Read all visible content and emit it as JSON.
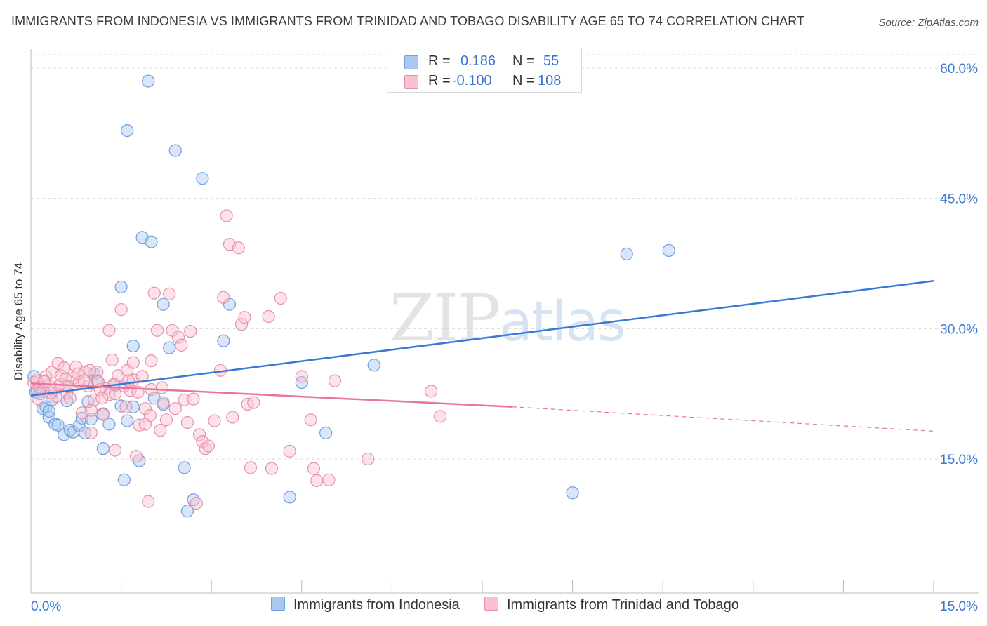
{
  "title": "IMMIGRANTS FROM INDONESIA VS IMMIGRANTS FROM TRINIDAD AND TOBAGO DISABILITY AGE 65 TO 74 CORRELATION CHART",
  "source": "Source: ZipAtlas.com",
  "watermark": {
    "zip": "ZIP",
    "atlas": "atlas"
  },
  "legend": {
    "rows": [
      {
        "r_label": "R =",
        "r_value": "0.186",
        "n_label": "N =",
        "n_value": "55",
        "color": "#a8c8f0",
        "border": "#6f9fe0"
      },
      {
        "r_label": "R =",
        "r_value": "-0.100",
        "n_label": "N =",
        "n_value": "108",
        "color": "#f8c0d0",
        "border": "#e890aa"
      }
    ]
  },
  "bottom_legend": [
    {
      "label": "Immigrants from Indonesia",
      "color": "#a8c8f0",
      "border": "#6f9fe0"
    },
    {
      "label": "Immigrants from Trinidad and Tobago",
      "color": "#f8c0d0",
      "border": "#e890aa"
    }
  ],
  "chart_data": {
    "type": "scatter",
    "title": "IMMIGRANTS FROM INDONESIA VS IMMIGRANTS FROM TRINIDAD AND TOBAGO DISABILITY AGE 65 TO 74 CORRELATION CHART",
    "xlabel": "",
    "ylabel": "Disability Age 65 to 74",
    "xlim": [
      0,
      15
    ],
    "ylim": [
      0,
      63
    ],
    "x_tick_labels": [
      "0.0%",
      "15.0%"
    ],
    "y_ticks": [
      15,
      30,
      45,
      60
    ],
    "y_tick_labels": [
      "15.0%",
      "30.0%",
      "45.0%",
      "60.0%"
    ],
    "grid": true,
    "colors": {
      "indonesia": "#3a78d8",
      "trinidad": "#e8749a"
    },
    "series": [
      {
        "name": "Immigrants from Indonesia",
        "color": "#6f9fe0",
        "trend": {
          "x": [
            0,
            15
          ],
          "y": [
            22.3,
            35.5
          ],
          "dashed_from": null
        },
        "points": [
          [
            0.05,
            24.5
          ],
          [
            0.1,
            23.0
          ],
          [
            0.15,
            22.5
          ],
          [
            0.2,
            20.8
          ],
          [
            0.25,
            21.0
          ],
          [
            0.3,
            19.8
          ],
          [
            0.35,
            21.8
          ],
          [
            0.4,
            19.0
          ],
          [
            0.45,
            18.9
          ],
          [
            0.55,
            17.8
          ],
          [
            0.6,
            21.7
          ],
          [
            0.65,
            18.3
          ],
          [
            0.7,
            18.1
          ],
          [
            0.8,
            18.8
          ],
          [
            0.85,
            19.7
          ],
          [
            0.95,
            21.6
          ],
          [
            1.0,
            19.6
          ],
          [
            1.05,
            24.8
          ],
          [
            1.1,
            24.0
          ],
          [
            1.2,
            20.2
          ],
          [
            1.2,
            16.2
          ],
          [
            1.3,
            19.0
          ],
          [
            1.4,
            23.5
          ],
          [
            1.5,
            21.1
          ],
          [
            1.5,
            34.8
          ],
          [
            1.55,
            12.6
          ],
          [
            1.6,
            19.4
          ],
          [
            1.6,
            52.8
          ],
          [
            1.7,
            28.0
          ],
          [
            1.7,
            21.0
          ],
          [
            1.8,
            14.8
          ],
          [
            1.85,
            40.5
          ],
          [
            1.95,
            58.5
          ],
          [
            2.0,
            40.0
          ],
          [
            2.05,
            22.0
          ],
          [
            2.2,
            21.3
          ],
          [
            2.2,
            32.8
          ],
          [
            2.3,
            27.8
          ],
          [
            2.4,
            50.5
          ],
          [
            2.55,
            14.0
          ],
          [
            2.6,
            9.0
          ],
          [
            2.7,
            10.3
          ],
          [
            2.85,
            47.3
          ],
          [
            3.2,
            28.6
          ],
          [
            3.3,
            32.8
          ],
          [
            4.3,
            10.6
          ],
          [
            4.5,
            23.8
          ],
          [
            4.9,
            18.0
          ],
          [
            5.7,
            25.8
          ],
          [
            9.0,
            11.1
          ],
          [
            9.9,
            38.6
          ],
          [
            10.6,
            39.0
          ],
          [
            0.08,
            22.7
          ],
          [
            0.3,
            20.5
          ],
          [
            0.9,
            18.0
          ]
        ]
      },
      {
        "name": "Immigrants from Trinidad and Tobago",
        "color": "#e890aa",
        "trend": {
          "x": [
            0,
            8.0
          ],
          "y": [
            23.7,
            21.0
          ],
          "dashed_to": [
            15,
            18.2
          ]
        },
        "points": [
          [
            0.05,
            23.8
          ],
          [
            0.1,
            24.0
          ],
          [
            0.15,
            23.2
          ],
          [
            0.2,
            22.8
          ],
          [
            0.25,
            24.5
          ],
          [
            0.3,
            23.5
          ],
          [
            0.35,
            25.0
          ],
          [
            0.4,
            23.0
          ],
          [
            0.45,
            26.0
          ],
          [
            0.5,
            23.6
          ],
          [
            0.5,
            24.6
          ],
          [
            0.55,
            25.5
          ],
          [
            0.6,
            22.6
          ],
          [
            0.65,
            22.0
          ],
          [
            0.7,
            24.3
          ],
          [
            0.75,
            25.6
          ],
          [
            0.8,
            23.8
          ],
          [
            0.85,
            20.3
          ],
          [
            0.9,
            25.0
          ],
          [
            0.95,
            23.4
          ],
          [
            1.0,
            20.6
          ],
          [
            1.0,
            18.0
          ],
          [
            1.05,
            21.8
          ],
          [
            1.1,
            25.0
          ],
          [
            1.15,
            23.0
          ],
          [
            1.2,
            20.1
          ],
          [
            1.25,
            23.1
          ],
          [
            1.3,
            22.4
          ],
          [
            1.3,
            29.8
          ],
          [
            1.35,
            26.4
          ],
          [
            1.4,
            22.5
          ],
          [
            1.4,
            16.0
          ],
          [
            1.45,
            24.6
          ],
          [
            1.5,
            32.2
          ],
          [
            1.55,
            23.4
          ],
          [
            1.6,
            25.2
          ],
          [
            1.65,
            22.9
          ],
          [
            1.7,
            24.1
          ],
          [
            1.7,
            26.1
          ],
          [
            1.75,
            15.3
          ],
          [
            1.8,
            18.9
          ],
          [
            1.85,
            24.5
          ],
          [
            1.9,
            20.8
          ],
          [
            1.9,
            19.0
          ],
          [
            1.95,
            10.1
          ],
          [
            2.0,
            26.3
          ],
          [
            2.0,
            23.0
          ],
          [
            2.05,
            34.1
          ],
          [
            2.1,
            29.8
          ],
          [
            2.15,
            18.3
          ],
          [
            2.2,
            21.5
          ],
          [
            2.25,
            19.5
          ],
          [
            2.3,
            34.0
          ],
          [
            2.35,
            29.8
          ],
          [
            2.4,
            20.8
          ],
          [
            2.45,
            29.0
          ],
          [
            2.5,
            28.1
          ],
          [
            2.55,
            21.8
          ],
          [
            2.6,
            19.2
          ],
          [
            2.65,
            29.7
          ],
          [
            2.7,
            21.9
          ],
          [
            2.75,
            9.9
          ],
          [
            2.8,
            17.8
          ],
          [
            2.85,
            17.0
          ],
          [
            2.9,
            16.2
          ],
          [
            2.95,
            16.5
          ],
          [
            3.05,
            19.4
          ],
          [
            3.15,
            25.2
          ],
          [
            3.2,
            33.6
          ],
          [
            3.25,
            43.0
          ],
          [
            3.3,
            39.7
          ],
          [
            3.35,
            19.8
          ],
          [
            3.45,
            39.3
          ],
          [
            3.5,
            30.5
          ],
          [
            3.55,
            31.3
          ],
          [
            3.6,
            21.3
          ],
          [
            3.65,
            14.0
          ],
          [
            3.7,
            21.5
          ],
          [
            3.95,
            31.4
          ],
          [
            4.0,
            13.9
          ],
          [
            4.15,
            33.5
          ],
          [
            4.3,
            15.9
          ],
          [
            4.5,
            24.5
          ],
          [
            4.65,
            19.5
          ],
          [
            4.7,
            13.9
          ],
          [
            4.75,
            12.5
          ],
          [
            4.95,
            12.6
          ],
          [
            5.05,
            24.0
          ],
          [
            5.6,
            15.0
          ],
          [
            6.65,
            22.8
          ],
          [
            6.8,
            19.9
          ],
          [
            0.12,
            21.9
          ],
          [
            0.22,
            23.9
          ],
          [
            0.42,
            22.2
          ],
          [
            0.58,
            24.2
          ],
          [
            0.78,
            24.8
          ],
          [
            0.98,
            25.2
          ],
          [
            1.18,
            22.0
          ],
          [
            1.38,
            23.6
          ],
          [
            1.58,
            21.0
          ],
          [
            1.78,
            22.7
          ],
          [
            1.98,
            20.0
          ],
          [
            2.18,
            23.2
          ],
          [
            0.33,
            22.6
          ],
          [
            0.62,
            23.3
          ],
          [
            0.88,
            24.0
          ],
          [
            1.12,
            23.9
          ],
          [
            1.62,
            24.0
          ]
        ]
      }
    ]
  }
}
